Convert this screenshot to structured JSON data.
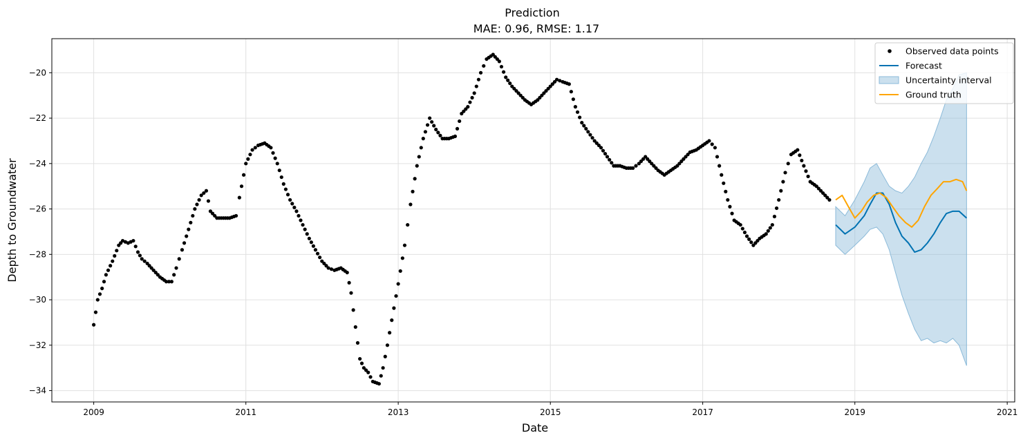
{
  "chart_data": {
    "type": "line",
    "title": "Prediction",
    "subtitle": "MAE: 0.96, RMSE: 1.17",
    "xlabel": "Date",
    "ylabel": "Depth to Groundwater",
    "x_ticks": [
      "2009",
      "2011",
      "2013",
      "2015",
      "2017",
      "2019",
      "2021"
    ],
    "y_ticks": [
      -34,
      -32,
      -30,
      -28,
      -26,
      -24,
      -22,
      -20
    ],
    "xlim": [
      "2008-06-14",
      "2021-02-06"
    ],
    "ylim": [
      -34.5,
      -18.5
    ],
    "grid": true,
    "legend_position": "top-right",
    "colors": {
      "observed": "#000000",
      "forecast": "#0072B2",
      "uncertainty": "#8bbad9",
      "ground_truth": "#FFA500"
    },
    "legend": [
      {
        "label": "Observed data points",
        "kind": "marker",
        "color": "#000000"
      },
      {
        "label": "Forecast",
        "kind": "line",
        "color": "#0072B2"
      },
      {
        "label": "Uncertainty interval",
        "kind": "patch",
        "color": "#8bbad9"
      },
      {
        "label": "Ground truth",
        "kind": "line",
        "color": "#FFA500"
      }
    ],
    "series": [
      {
        "name": "Observed data points",
        "type": "scatter",
        "points": [
          [
            "2009-01-01",
            -31.1
          ],
          [
            "2009-01-20",
            -30.0
          ],
          [
            "2009-02-10",
            -29.5
          ],
          [
            "2009-03-01",
            -28.9
          ],
          [
            "2009-04-01",
            -28.3
          ],
          [
            "2009-05-01",
            -27.6
          ],
          [
            "2009-05-20",
            -27.4
          ],
          [
            "2009-06-15",
            -27.5
          ],
          [
            "2009-07-10",
            -27.4
          ],
          [
            "2009-08-01",
            -27.9
          ],
          [
            "2009-08-20",
            -28.2
          ],
          [
            "2009-09-15",
            -28.4
          ],
          [
            "2009-10-15",
            -28.7
          ],
          [
            "2009-11-15",
            -29.0
          ],
          [
            "2009-12-15",
            -29.2
          ],
          [
            "2010-01-10",
            -29.2
          ],
          [
            "2010-02-01",
            -28.6
          ],
          [
            "2010-03-01",
            -27.8
          ],
          [
            "2010-04-01",
            -26.9
          ],
          [
            "2010-05-01",
            -26.0
          ],
          [
            "2010-06-01",
            -25.4
          ],
          [
            "2010-06-25",
            -25.2
          ],
          [
            "2010-07-15",
            -26.1
          ],
          [
            "2010-08-15",
            -26.4
          ],
          [
            "2010-09-15",
            -26.4
          ],
          [
            "2010-10-15",
            -26.4
          ],
          [
            "2010-11-15",
            -26.3
          ],
          [
            "2010-12-01",
            -25.5
          ],
          [
            "2011-01-01",
            -24.0
          ],
          [
            "2011-02-01",
            -23.4
          ],
          [
            "2011-03-01",
            -23.2
          ],
          [
            "2011-04-01",
            -23.1
          ],
          [
            "2011-05-01",
            -23.3
          ],
          [
            "2011-06-01",
            -24.0
          ],
          [
            "2011-07-01",
            -24.9
          ],
          [
            "2011-08-01",
            -25.6
          ],
          [
            "2011-09-01",
            -26.1
          ],
          [
            "2011-10-01",
            -26.7
          ],
          [
            "2011-11-01",
            -27.3
          ],
          [
            "2011-12-01",
            -27.8
          ],
          [
            "2012-01-01",
            -28.3
          ],
          [
            "2012-02-01",
            -28.6
          ],
          [
            "2012-03-01",
            -28.7
          ],
          [
            "2012-04-01",
            -28.6
          ],
          [
            "2012-05-01",
            -28.8
          ],
          [
            "2012-05-20",
            -29.7
          ],
          [
            "2012-06-10",
            -31.2
          ],
          [
            "2012-07-01",
            -32.6
          ],
          [
            "2012-07-20",
            -33.0
          ],
          [
            "2012-08-10",
            -33.2
          ],
          [
            "2012-09-01",
            -33.6
          ],
          [
            "2012-10-01",
            -33.7
          ],
          [
            "2012-10-20",
            -33.0
          ],
          [
            "2012-11-10",
            -32.0
          ],
          [
            "2012-12-01",
            -30.9
          ],
          [
            "2013-01-01",
            -29.3
          ],
          [
            "2013-02-01",
            -27.6
          ],
          [
            "2013-03-01",
            -25.8
          ],
          [
            "2013-04-01",
            -24.1
          ],
          [
            "2013-05-01",
            -22.9
          ],
          [
            "2013-06-01",
            -22.0
          ],
          [
            "2013-07-01",
            -22.5
          ],
          [
            "2013-08-01",
            -22.9
          ],
          [
            "2013-09-01",
            -22.9
          ],
          [
            "2013-10-01",
            -22.8
          ],
          [
            "2013-11-01",
            -21.8
          ],
          [
            "2013-12-01",
            -21.5
          ],
          [
            "2014-01-01",
            -20.9
          ],
          [
            "2014-02-01",
            -20.0
          ],
          [
            "2014-03-01",
            -19.4
          ],
          [
            "2014-04-01",
            -19.2
          ],
          [
            "2014-05-01",
            -19.5
          ],
          [
            "2014-06-01",
            -20.2
          ],
          [
            "2014-07-01",
            -20.6
          ],
          [
            "2014-08-01",
            -20.9
          ],
          [
            "2014-09-01",
            -21.2
          ],
          [
            "2014-10-01",
            -21.4
          ],
          [
            "2014-11-01",
            -21.2
          ],
          [
            "2014-12-01",
            -20.9
          ],
          [
            "2015-01-01",
            -20.6
          ],
          [
            "2015-02-01",
            -20.3
          ],
          [
            "2015-03-01",
            -20.4
          ],
          [
            "2015-04-01",
            -20.5
          ],
          [
            "2015-05-01",
            -21.5
          ],
          [
            "2015-06-01",
            -22.2
          ],
          [
            "2015-07-01",
            -22.6
          ],
          [
            "2015-08-01",
            -23.0
          ],
          [
            "2015-09-01",
            -23.3
          ],
          [
            "2015-10-01",
            -23.7
          ],
          [
            "2015-11-01",
            -24.1
          ],
          [
            "2015-12-01",
            -24.1
          ],
          [
            "2016-01-01",
            -24.2
          ],
          [
            "2016-02-01",
            -24.2
          ],
          [
            "2016-03-01",
            -24.0
          ],
          [
            "2016-04-01",
            -23.7
          ],
          [
            "2016-05-01",
            -24.0
          ],
          [
            "2016-06-01",
            -24.3
          ],
          [
            "2016-07-01",
            -24.5
          ],
          [
            "2016-08-01",
            -24.3
          ],
          [
            "2016-09-01",
            -24.1
          ],
          [
            "2016-10-01",
            -23.8
          ],
          [
            "2016-11-01",
            -23.5
          ],
          [
            "2016-12-01",
            -23.4
          ],
          [
            "2017-01-01",
            -23.2
          ],
          [
            "2017-02-01",
            -23.0
          ],
          [
            "2017-03-01",
            -23.3
          ],
          [
            "2017-04-01",
            -24.5
          ],
          [
            "2017-05-01",
            -25.6
          ],
          [
            "2017-06-01",
            -26.5
          ],
          [
            "2017-07-01",
            -26.7
          ],
          [
            "2017-08-01",
            -27.2
          ],
          [
            "2017-09-01",
            -27.6
          ],
          [
            "2017-10-01",
            -27.3
          ],
          [
            "2017-11-01",
            -27.1
          ],
          [
            "2017-12-01",
            -26.7
          ],
          [
            "2018-01-01",
            -25.6
          ],
          [
            "2018-02-01",
            -24.4
          ],
          [
            "2018-03-01",
            -23.6
          ],
          [
            "2018-04-01",
            -23.4
          ],
          [
            "2018-05-01",
            -24.1
          ],
          [
            "2018-06-01",
            -24.8
          ],
          [
            "2018-07-01",
            -25.0
          ],
          [
            "2018-08-01",
            -25.3
          ],
          [
            "2018-09-01",
            -25.6
          ]
        ]
      },
      {
        "name": "Forecast",
        "type": "line",
        "points": [
          [
            "2018-10-01",
            -26.7
          ],
          [
            "2018-11-15",
            -27.1
          ],
          [
            "2019-01-01",
            -26.8
          ],
          [
            "2019-02-15",
            -26.3
          ],
          [
            "2019-03-15",
            -25.8
          ],
          [
            "2019-04-15",
            -25.3
          ],
          [
            "2019-05-15",
            -25.3
          ],
          [
            "2019-06-15",
            -25.8
          ],
          [
            "2019-07-15",
            -26.6
          ],
          [
            "2019-08-15",
            -27.2
          ],
          [
            "2019-09-15",
            -27.5
          ],
          [
            "2019-10-15",
            -27.9
          ],
          [
            "2019-11-15",
            -27.8
          ],
          [
            "2019-12-15",
            -27.5
          ],
          [
            "2020-01-15",
            -27.1
          ],
          [
            "2020-02-15",
            -26.6
          ],
          [
            "2020-03-15",
            -26.2
          ],
          [
            "2020-04-15",
            -26.1
          ],
          [
            "2020-05-15",
            -26.1
          ],
          [
            "2020-06-20",
            -26.4
          ]
        ]
      },
      {
        "name": "Uncertainty interval",
        "type": "area",
        "points": [
          [
            "2018-10-01",
            -25.9,
            -27.6
          ],
          [
            "2018-11-15",
            -26.3,
            -28.0
          ],
          [
            "2019-01-01",
            -25.6,
            -27.6
          ],
          [
            "2019-02-15",
            -24.8,
            -27.2
          ],
          [
            "2019-03-15",
            -24.2,
            -26.9
          ],
          [
            "2019-04-15",
            -24.0,
            -26.8
          ],
          [
            "2019-05-15",
            -24.5,
            -27.1
          ],
          [
            "2019-06-15",
            -25.0,
            -27.8
          ],
          [
            "2019-07-15",
            -25.2,
            -28.8
          ],
          [
            "2019-08-15",
            -25.3,
            -29.8
          ],
          [
            "2019-09-15",
            -25.0,
            -30.6
          ],
          [
            "2019-10-15",
            -24.6,
            -31.3
          ],
          [
            "2019-11-15",
            -24.0,
            -31.8
          ],
          [
            "2019-12-15",
            -23.5,
            -31.7
          ],
          [
            "2020-01-15",
            -22.8,
            -31.9
          ],
          [
            "2020-02-15",
            -22.0,
            -31.8
          ],
          [
            "2020-03-15",
            -21.2,
            -31.9
          ],
          [
            "2020-04-15",
            -20.7,
            -31.7
          ],
          [
            "2020-05-15",
            -20.1,
            -32.0
          ],
          [
            "2020-06-20",
            -20.0,
            -32.9
          ]
        ]
      },
      {
        "name": "Ground truth",
        "type": "line",
        "points": [
          [
            "2018-10-01",
            -25.6
          ],
          [
            "2018-11-01",
            -25.4
          ],
          [
            "2018-12-01",
            -25.9
          ],
          [
            "2019-01-01",
            -26.4
          ],
          [
            "2019-02-01",
            -26.1
          ],
          [
            "2019-03-01",
            -25.7
          ],
          [
            "2019-04-01",
            -25.4
          ],
          [
            "2019-05-01",
            -25.3
          ],
          [
            "2019-06-01",
            -25.5
          ],
          [
            "2019-07-01",
            -25.9
          ],
          [
            "2019-08-01",
            -26.3
          ],
          [
            "2019-09-01",
            -26.6
          ],
          [
            "2019-10-01",
            -26.8
          ],
          [
            "2019-11-01",
            -26.5
          ],
          [
            "2019-12-01",
            -25.9
          ],
          [
            "2020-01-01",
            -25.4
          ],
          [
            "2020-02-01",
            -25.1
          ],
          [
            "2020-03-01",
            -24.8
          ],
          [
            "2020-04-01",
            -24.8
          ],
          [
            "2020-05-01",
            -24.7
          ],
          [
            "2020-06-01",
            -24.8
          ],
          [
            "2020-06-20",
            -25.2
          ]
        ]
      }
    ]
  }
}
